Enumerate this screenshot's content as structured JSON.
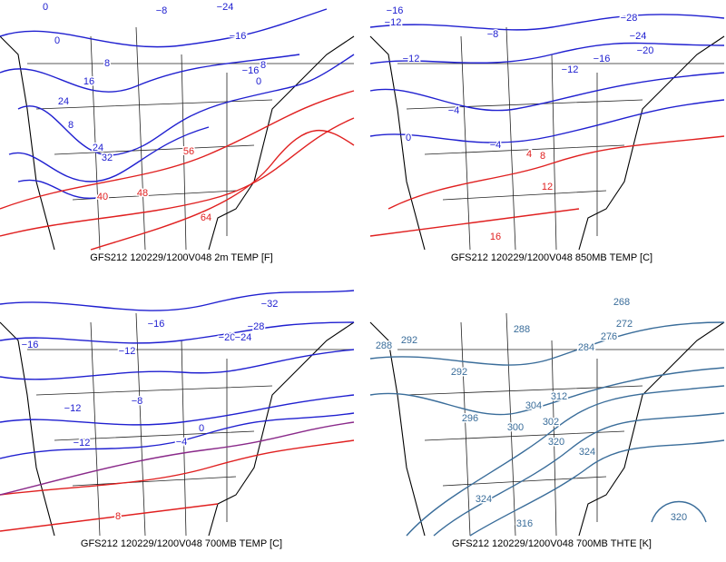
{
  "panels": [
    {
      "caption": "GFS212 120229/1200V048 2m TEMP [F]",
      "labels": [
        {
          "text": "0",
          "color": "#2020d0"
        },
        {
          "text": "−8",
          "color": "#2020d0"
        },
        {
          "text": "−24",
          "color": "#2020d0"
        },
        {
          "text": "0",
          "color": "#2020d0"
        },
        {
          "text": "−16",
          "color": "#2020d0"
        },
        {
          "text": "8",
          "color": "#2020d0"
        },
        {
          "text": "−16",
          "color": "#2020d0"
        },
        {
          "text": "8",
          "color": "#2020d0"
        },
        {
          "text": "0",
          "color": "#2020d0"
        },
        {
          "text": "16",
          "color": "#2020d0"
        },
        {
          "text": "24",
          "color": "#2020d0"
        },
        {
          "text": "8",
          "color": "#2020d0"
        },
        {
          "text": "24",
          "color": "#2020d0"
        },
        {
          "text": "32",
          "color": "#2020d0"
        },
        {
          "text": "56",
          "color": "#e02020"
        },
        {
          "text": "40",
          "color": "#e02020"
        },
        {
          "text": "48",
          "color": "#e02020"
        },
        {
          "text": "64",
          "color": "#e02020"
        }
      ]
    },
    {
      "caption": "GFS212 120229/1200V048 850MB TEMP [C]",
      "labels": [
        {
          "text": "−16",
          "color": "#2020d0"
        },
        {
          "text": "−12",
          "color": "#2020d0"
        },
        {
          "text": "−8",
          "color": "#2020d0"
        },
        {
          "text": "−28",
          "color": "#2020d0"
        },
        {
          "text": "−24",
          "color": "#2020d0"
        },
        {
          "text": "−20",
          "color": "#2020d0"
        },
        {
          "text": "−16",
          "color": "#2020d0"
        },
        {
          "text": "−12",
          "color": "#2020d0"
        },
        {
          "text": "−12",
          "color": "#2020d0"
        },
        {
          "text": "−4",
          "color": "#2020d0"
        },
        {
          "text": "0",
          "color": "#2020d0"
        },
        {
          "text": "−4",
          "color": "#2020d0"
        },
        {
          "text": "4",
          "color": "#e02020"
        },
        {
          "text": "8",
          "color": "#e02020"
        },
        {
          "text": "12",
          "color": "#e02020"
        },
        {
          "text": "16",
          "color": "#e02020"
        }
      ]
    },
    {
      "caption": "GFS212 120229/1200V048 700MB TEMP [C]",
      "labels": [
        {
          "text": "−32",
          "color": "#2020d0"
        },
        {
          "text": "−16",
          "color": "#2020d0"
        },
        {
          "text": "−28",
          "color": "#2020d0"
        },
        {
          "text": "−20",
          "color": "#2020d0"
        },
        {
          "text": "−24",
          "color": "#2020d0"
        },
        {
          "text": "−16",
          "color": "#2020d0"
        },
        {
          "text": "−12",
          "color": "#2020d0"
        },
        {
          "text": "−12",
          "color": "#2020d0"
        },
        {
          "text": "−8",
          "color": "#2020d0"
        },
        {
          "text": "−12",
          "color": "#2020d0"
        },
        {
          "text": "−4",
          "color": "#2020d0"
        },
        {
          "text": "0",
          "color": "#2020d0"
        },
        {
          "text": "8",
          "color": "#e02020"
        }
      ]
    },
    {
      "caption": "GFS212 120229/1200V048 700MB THTE [K]",
      "labels": [
        {
          "text": "268",
          "color": "#3a6d9a"
        },
        {
          "text": "288",
          "color": "#3a6d9a"
        },
        {
          "text": "272",
          "color": "#3a6d9a"
        },
        {
          "text": "276",
          "color": "#3a6d9a"
        },
        {
          "text": "284",
          "color": "#3a6d9a"
        },
        {
          "text": "292",
          "color": "#3a6d9a"
        },
        {
          "text": "288",
          "color": "#3a6d9a"
        },
        {
          "text": "292",
          "color": "#3a6d9a"
        },
        {
          "text": "304",
          "color": "#3a6d9a"
        },
        {
          "text": "312",
          "color": "#3a6d9a"
        },
        {
          "text": "296",
          "color": "#3a6d9a"
        },
        {
          "text": "300",
          "color": "#3a6d9a"
        },
        {
          "text": "302",
          "color": "#3a6d9a"
        },
        {
          "text": "320",
          "color": "#3a6d9a"
        },
        {
          "text": "324",
          "color": "#3a6d9a"
        },
        {
          "text": "324",
          "color": "#3a6d9a"
        },
        {
          "text": "316",
          "color": "#3a6d9a"
        },
        {
          "text": "320",
          "color": "#3a6d9a"
        }
      ]
    }
  ]
}
